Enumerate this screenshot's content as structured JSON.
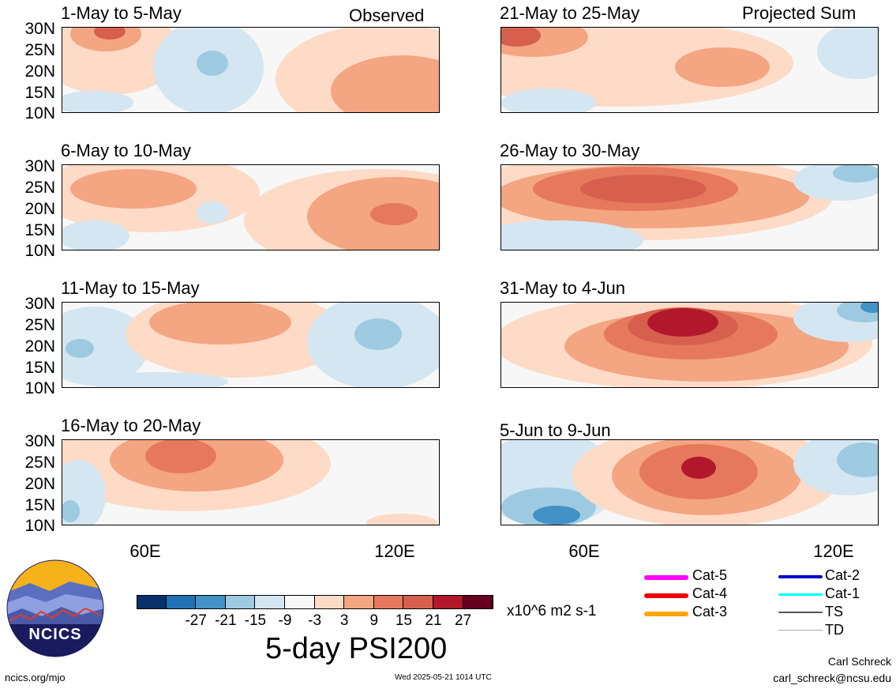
{
  "panels": [
    {
      "title": "1-May to 5-May",
      "tag": "Observed"
    },
    {
      "title": "6-May to 10-May",
      "tag": ""
    },
    {
      "title": "11-May to 15-May",
      "tag": ""
    },
    {
      "title": "16-May to 20-May",
      "tag": ""
    },
    {
      "title": "21-May to 25-May",
      "tag": "Projected Sum"
    },
    {
      "title": "26-May to 30-May",
      "tag": ""
    },
    {
      "title": "31-May to 4-Jun",
      "tag": ""
    },
    {
      "title": "5-Jun to 9-Jun",
      "tag": ""
    }
  ],
  "lat_labels": [
    "30N",
    "25N",
    "20N",
    "15N",
    "10N"
  ],
  "lon_labels": [
    "60E",
    "120E"
  ],
  "colorbar": {
    "colors": [
      "#08306b",
      "#2171b5",
      "#4292c6",
      "#9ecae1",
      "#d4e6f1",
      "#f7f7f7",
      "#fddbc7",
      "#f4a582",
      "#e6795d",
      "#d6604d",
      "#b2182b",
      "#67001f"
    ],
    "ticks": [
      "-27",
      "-21",
      "-15",
      "-9",
      "-3",
      "3",
      "9",
      "15",
      "21",
      "27"
    ],
    "units": "x10^6 m2 s-1"
  },
  "title": "5-day PSI200",
  "legend": [
    {
      "label": "Cat-5",
      "color": "#ff00ff"
    },
    {
      "label": "Cat-4",
      "color": "#ee0000"
    },
    {
      "label": "Cat-3",
      "color": "#ffa500"
    },
    {
      "label": "Cat-2",
      "color": "#0000cc"
    },
    {
      "label": "Cat-1",
      "color": "#00ffff"
    },
    {
      "label": "TS",
      "color": "#555555"
    },
    {
      "label": "TD",
      "color": "#aaaaaa"
    }
  ],
  "logo": {
    "text": "NCICS"
  },
  "footer": {
    "site": "ncics.org/mjo",
    "timestamp": "Wed 2025-05-21 1014 UTC",
    "author": "Carl Schreck",
    "email": "carl_schreck@ncsu.edu"
  }
}
